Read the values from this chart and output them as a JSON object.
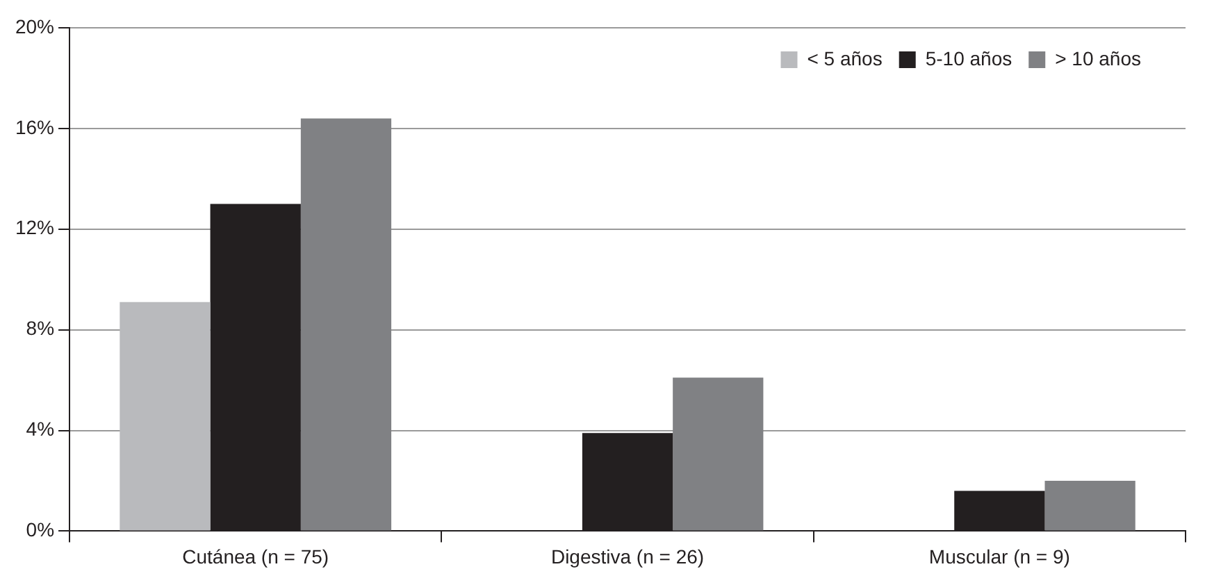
{
  "chart_data": {
    "type": "bar",
    "categories": [
      "Cutánea (n = 75)",
      "Digestiva (n = 26)",
      "Muscular (n = 9)"
    ],
    "series": [
      {
        "name": "< 5 años",
        "color": "#b9babd",
        "values": [
          9.1,
          0,
          0
        ]
      },
      {
        "name": "5-10 años",
        "color": "#231f20",
        "values": [
          13.0,
          3.9,
          1.6
        ]
      },
      {
        "name": "> 10 años",
        "color": "#808184",
        "values": [
          16.4,
          6.1,
          2.0
        ]
      }
    ],
    "ylim": [
      0,
      20
    ],
    "yticks": [
      {
        "value": 0,
        "label": "0%"
      },
      {
        "value": 4,
        "label": "4%"
      },
      {
        "value": 8,
        "label": "8%"
      },
      {
        "value": 12,
        "label": "12%"
      },
      {
        "value": 16,
        "label": "16%"
      },
      {
        "value": 20,
        "label": "20%"
      }
    ],
    "grid": "y",
    "legend": "top right"
  }
}
